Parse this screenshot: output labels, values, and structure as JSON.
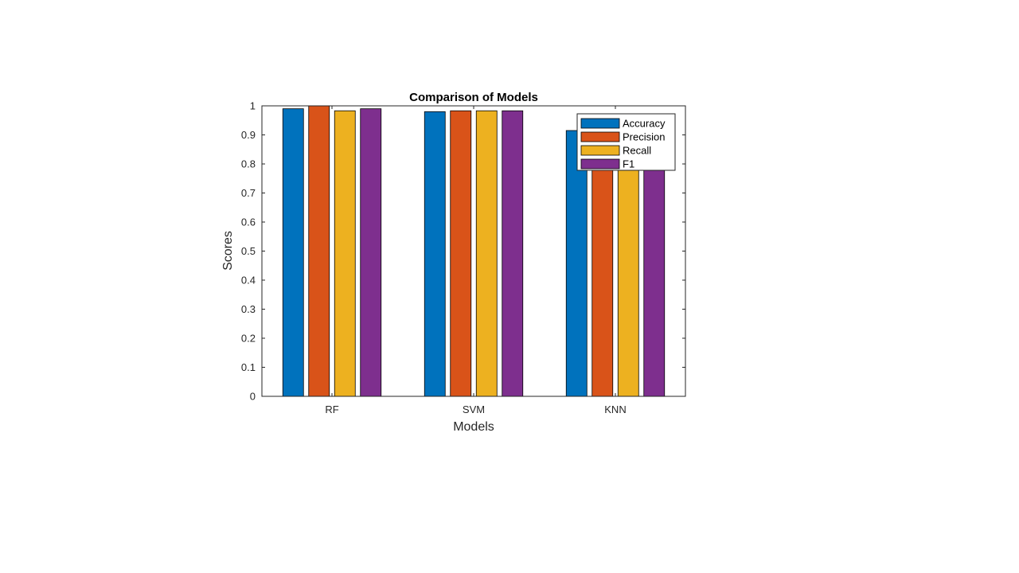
{
  "chart_data": {
    "type": "bar",
    "title": "Comparison of Models",
    "xlabel": "Models",
    "ylabel": "Scores",
    "categories": [
      "RF",
      "SVM",
      "KNN"
    ],
    "ylim": [
      0,
      1
    ],
    "yticks": [
      "0",
      "0.1",
      "0.2",
      "0.3",
      "0.4",
      "0.5",
      "0.6",
      "0.7",
      "0.8",
      "0.9",
      "1"
    ],
    "grid": false,
    "legend_position": "top-right",
    "series": [
      {
        "name": "Accuracy",
        "color": "#0072BD",
        "values": [
          0.99,
          0.98,
          0.915
        ]
      },
      {
        "name": "Precision",
        "color": "#D95319",
        "values": [
          1.0,
          0.983,
          0.91
        ]
      },
      {
        "name": "Recall",
        "color": "#EDB120",
        "values": [
          0.983,
          0.983,
          0.905
        ]
      },
      {
        "name": "F1",
        "color": "#7E2F8E",
        "values": [
          0.99,
          0.983,
          0.905
        ]
      }
    ]
  }
}
